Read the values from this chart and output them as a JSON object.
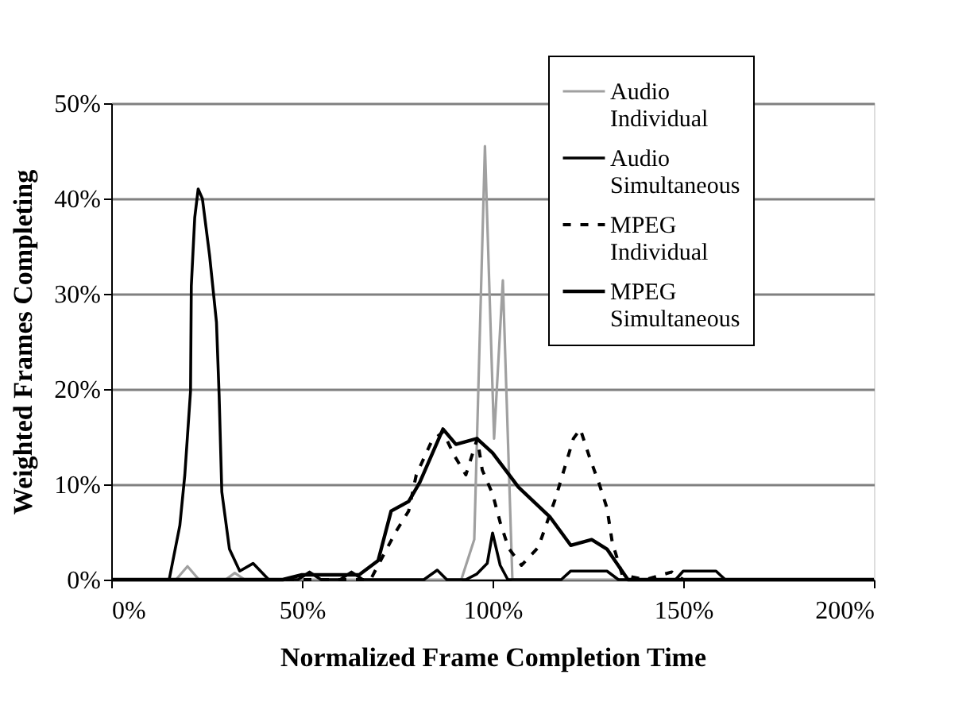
{
  "chart_data": {
    "type": "line",
    "xlabel": "Normalized Frame  Completion Time",
    "ylabel": "Weighted Frames Completing",
    "xlim": [
      0,
      200
    ],
    "xticks": [
      {
        "value": 0,
        "label": "0%"
      },
      {
        "value": 50,
        "label": "50%"
      },
      {
        "value": 100,
        "label": "100%"
      },
      {
        "value": 150,
        "label": "150%"
      },
      {
        "value": 200,
        "label": "200%"
      }
    ],
    "ylim": [
      0,
      50
    ],
    "yticks": [
      {
        "value": 0,
        "label": "0%"
      },
      {
        "value": 10,
        "label": "10%"
      },
      {
        "value": 20,
        "label": "20%"
      },
      {
        "value": 30,
        "label": "30%"
      },
      {
        "value": 40,
        "label": "40%"
      },
      {
        "value": 50,
        "label": "50%"
      }
    ],
    "grid": "y",
    "legend": "top right",
    "marker": "none",
    "series": [
      {
        "name": "Audio Individual",
        "color": "#a0a0a0",
        "line_style": "solid",
        "x": [
          0,
          17,
          20,
          23,
          30,
          32.4,
          35,
          91.8,
          95.2,
          98,
          100.4,
          102.7,
          105.2,
          200
        ],
        "values": [
          0,
          0,
          1.4,
          0,
          0,
          0.7,
          0,
          0,
          4.2,
          45.5,
          14.8,
          31.4,
          0,
          0
        ]
      },
      {
        "name": "Audio Simultaneous",
        "color": "#000000",
        "line_style": "solid",
        "x": [
          0,
          15.2,
          18,
          19.3,
          20.8,
          21,
          21.9,
          22.8,
          23.9,
          25.8,
          27.6,
          28.3,
          29,
          31,
          33.7,
          37.2,
          41.3,
          49,
          52,
          55,
          60,
          63,
          66,
          82,
          85.5,
          88,
          93,
          95.9,
          98.6,
          100,
          102,
          104,
          118,
          120.5,
          130,
          133,
          148,
          150,
          158.6,
          161,
          200
        ],
        "values": [
          0,
          0,
          5.7,
          11,
          19.8,
          30.8,
          38,
          41,
          40,
          34,
          27,
          19.3,
          9.2,
          3.2,
          0.9,
          1.7,
          0,
          0,
          0.8,
          0,
          0,
          0.8,
          0,
          0,
          1,
          0,
          0,
          0.6,
          1.7,
          4.9,
          1.5,
          0,
          0,
          0.9,
          0.9,
          0,
          0,
          0.9,
          0.9,
          0,
          0
        ]
      },
      {
        "name": "MPEG Individual",
        "color": "#000000",
        "line_style": "dashed",
        "x": [
          0,
          68,
          74.6,
          78,
          80,
          84,
          87,
          90,
          93,
          96,
          97.3,
          100,
          102,
          104.2,
          107.6,
          112,
          116.4,
          121.2,
          123,
          125.3,
          128,
          130,
          131.4,
          134,
          140,
          147,
          150,
          200
        ],
        "values": [
          0,
          0,
          5,
          7.2,
          11,
          14.5,
          15.5,
          13,
          11,
          14.8,
          11.5,
          9,
          6,
          3.3,
          1.5,
          3.4,
          8.4,
          14.8,
          15.8,
          13,
          10,
          7.5,
          3.9,
          0.5,
          0,
          0.8,
          0,
          0
        ]
      },
      {
        "name": "MPEG Simultaneous",
        "color": "#000000",
        "line_style": "solid",
        "x": [
          0,
          45,
          50,
          65,
          70,
          73.4,
          78,
          80.9,
          87,
          90.4,
          95.9,
          100,
          106.8,
          115,
          120.5,
          126,
          130,
          135.5,
          200
        ],
        "values": [
          0,
          0,
          0.5,
          0.5,
          2,
          7.2,
          8.2,
          10.2,
          15.8,
          14.2,
          14.8,
          13.3,
          9.7,
          6.6,
          3.6,
          4.2,
          3.2,
          0,
          0
        ]
      }
    ]
  }
}
